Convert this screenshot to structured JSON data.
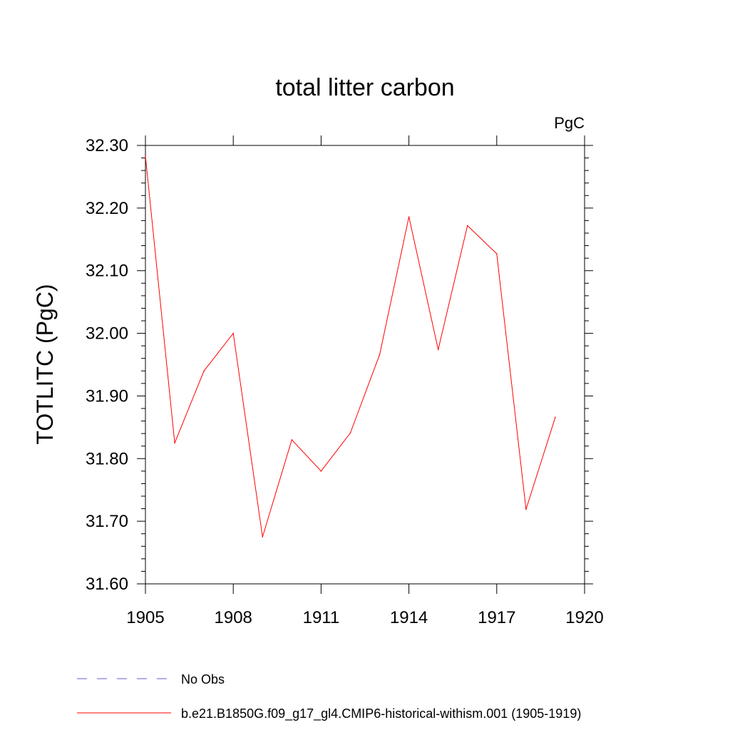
{
  "chart_data": {
    "type": "line",
    "title": "total litter carbon",
    "units_label": "PgC",
    "ylabel": "TOTLITC  (PgC)",
    "xlabel": "",
    "xlim": [
      1905,
      1920
    ],
    "ylim": [
      31.6,
      32.3
    ],
    "x_ticks": [
      1905,
      1908,
      1911,
      1914,
      1917,
      1920
    ],
    "x_tick_labels": [
      "1905",
      "1908",
      "1911",
      "1914",
      "1917",
      "1920"
    ],
    "y_ticks": [
      31.6,
      31.7,
      31.8,
      31.9,
      32.0,
      32.1,
      32.2,
      32.3
    ],
    "y_tick_labels": [
      "31.60",
      "31.70",
      "31.80",
      "31.90",
      "32.00",
      "32.10",
      "32.20",
      "32.30"
    ],
    "grid": false,
    "legend_position": "bottom",
    "series": [
      {
        "name": "b.e21.B1850G.f09_g17_gl4.CMIP6-historical-withism.001 (1905-1919)",
        "color": "#ff0000",
        "style": "solid",
        "x": [
          1905,
          1906,
          1907,
          1908,
          1909,
          1910,
          1911,
          1912,
          1913,
          1914,
          1915,
          1916,
          1917,
          1918,
          1919
        ],
        "y": [
          32.283,
          31.825,
          31.94,
          32.0,
          31.675,
          31.83,
          31.78,
          31.841,
          31.966,
          32.186,
          31.974,
          32.172,
          32.127,
          31.719,
          31.866
        ]
      }
    ],
    "legend": [
      {
        "label": "No Obs",
        "color": "#6a5acd",
        "style": "dashed"
      },
      {
        "label": "b.e21.B1850G.f09_g17_gl4.CMIP6-historical-withism.001 (1905-1919)",
        "color": "#ff0000",
        "style": "solid"
      }
    ]
  }
}
